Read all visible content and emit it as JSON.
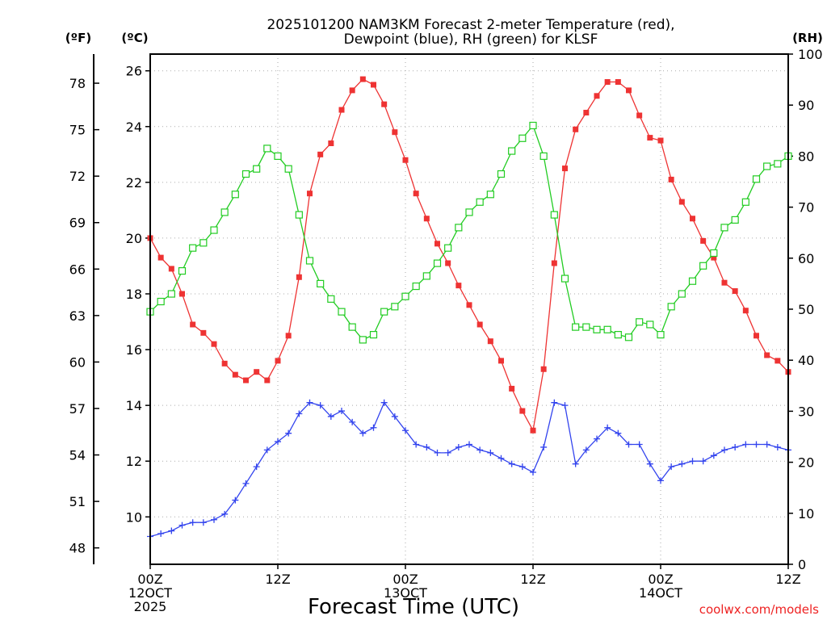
{
  "chart_data": {
    "type": "line",
    "title": [
      "2025101200 NAM3KM Forecast 2-meter Temperature (red),",
      "Dewpoint (blue), RH (green) for KLSF"
    ],
    "xlabel": "Forecast Time (UTC)",
    "credit": "coolwx.com/models",
    "units": {
      "fahrenheit": "(ºF)",
      "celsius": "(ºC)",
      "rh": "(RH)"
    },
    "x_range_hours": [
      0,
      60
    ],
    "x_ticks": [
      {
        "hour": 0,
        "lines": [
          "00Z",
          "12OCT",
          "2025"
        ]
      },
      {
        "hour": 12,
        "lines": [
          "12Z"
        ]
      },
      {
        "hour": 24,
        "lines": [
          "00Z",
          "13OCT"
        ]
      },
      {
        "hour": 36,
        "lines": [
          "12Z"
        ]
      },
      {
        "hour": 48,
        "lines": [
          "00Z",
          "14OCT"
        ]
      },
      {
        "hour": 60,
        "lines": [
          "12Z"
        ]
      }
    ],
    "ylim_celsius": [
      8.3,
      26.6
    ],
    "y_ticks_celsius": [
      "10",
      "12",
      "14",
      "16",
      "18",
      "20",
      "22",
      "24",
      "26"
    ],
    "y_ticks_fahrenheit": [
      "48",
      "51",
      "54",
      "57",
      "60",
      "63",
      "66",
      "69",
      "72",
      "75",
      "78"
    ],
    "ylim_rh": [
      0,
      100
    ],
    "y_ticks_rh": [
      "0",
      "10",
      "20",
      "30",
      "40",
      "50",
      "60",
      "70",
      "80",
      "90",
      "100"
    ],
    "x": [
      0,
      1,
      2,
      3,
      4,
      5,
      6,
      7,
      8,
      9,
      10,
      11,
      12,
      13,
      14,
      15,
      16,
      17,
      18,
      19,
      20,
      21,
      22,
      23,
      24,
      25,
      26,
      27,
      28,
      29,
      30,
      31,
      32,
      33,
      34,
      35,
      36,
      37,
      38,
      39,
      40,
      41,
      42,
      43,
      44,
      45,
      46,
      47,
      48,
      49,
      50,
      51,
      52,
      53,
      54,
      55,
      56,
      57,
      58,
      59,
      60
    ],
    "series": [
      {
        "name": "Temperature",
        "color": "#ee3333",
        "marker": "filled-square",
        "axis": "celsius",
        "values": [
          20.0,
          19.3,
          18.9,
          18.0,
          16.9,
          16.6,
          16.2,
          15.5,
          15.1,
          14.9,
          15.2,
          14.9,
          15.6,
          16.5,
          18.6,
          21.6,
          23.0,
          23.4,
          24.6,
          25.3,
          25.7,
          25.5,
          24.8,
          23.8,
          22.8,
          21.6,
          20.7,
          19.8,
          19.1,
          18.3,
          17.6,
          16.9,
          16.3,
          15.6,
          14.6,
          13.8,
          13.1,
          15.3,
          19.1,
          22.5,
          23.9,
          24.5,
          25.1,
          25.6,
          25.6,
          25.3,
          24.4,
          23.6,
          23.5,
          22.1,
          21.3,
          20.7,
          19.9,
          19.3,
          18.4,
          18.1,
          17.4,
          16.5,
          15.8,
          15.6,
          15.2
        ]
      },
      {
        "name": "Dewpoint",
        "color": "#3344ee",
        "marker": "plus",
        "axis": "celsius",
        "values": [
          9.3,
          9.4,
          9.5,
          9.7,
          9.8,
          9.8,
          9.9,
          10.1,
          10.6,
          11.2,
          11.8,
          12.4,
          12.7,
          13.0,
          13.7,
          14.1,
          14.0,
          13.6,
          13.8,
          13.4,
          13.0,
          13.2,
          14.1,
          13.6,
          13.1,
          12.6,
          12.5,
          12.3,
          12.3,
          12.5,
          12.6,
          12.4,
          12.3,
          12.1,
          11.9,
          11.8,
          11.6,
          12.5,
          14.1,
          14.0,
          11.9,
          12.4,
          12.8,
          13.2,
          13.0,
          12.6,
          12.6,
          11.9,
          11.3,
          11.8,
          11.9,
          12.0,
          12.0,
          12.2,
          12.4,
          12.5,
          12.6,
          12.6,
          12.6,
          12.5,
          12.4
        ]
      },
      {
        "name": "RH",
        "color": "#22cc22",
        "marker": "open-square",
        "axis": "rh",
        "values": [
          49.5,
          51.5,
          53,
          57.5,
          62,
          63,
          65.5,
          69,
          72.5,
          76.5,
          77.5,
          81.5,
          80,
          77.5,
          68.5,
          59.5,
          55,
          52,
          49.5,
          46.5,
          44,
          45,
          49.5,
          50.5,
          52.5,
          54.5,
          56.5,
          59,
          62,
          66,
          69,
          71,
          72.5,
          76.5,
          81,
          83.5,
          86,
          80,
          68.5,
          56,
          46.5,
          46.5,
          46,
          46,
          45,
          44.5,
          47.5,
          47,
          45,
          50.5,
          53,
          55.5,
          58.5,
          61,
          66,
          67.5,
          71,
          75.5,
          78,
          78.5,
          80
        ]
      }
    ]
  }
}
